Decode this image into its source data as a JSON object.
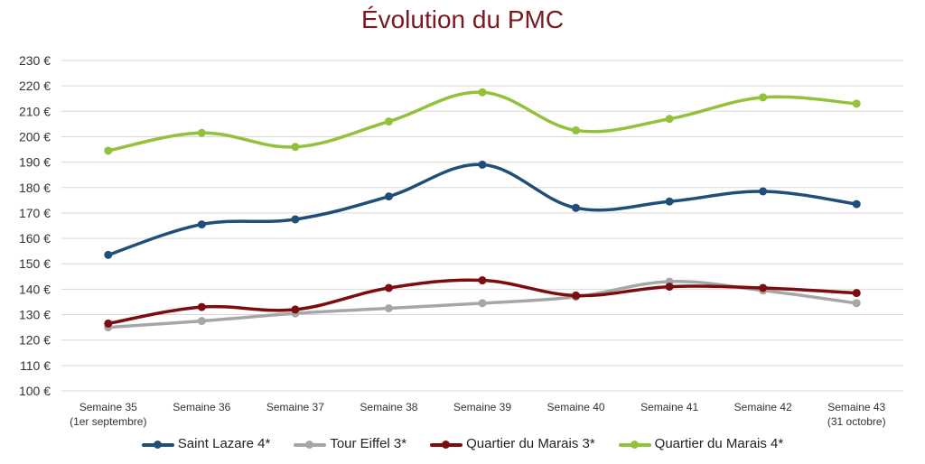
{
  "chart_data": {
    "type": "line",
    "title": "Évolution du PMC",
    "categories": [
      "Semaine 35",
      "Semaine 36",
      "Semaine 37",
      "Semaine 38",
      "Semaine 39",
      "Semaine 40",
      "Semaine 41",
      "Semaine 42",
      "Semaine 43"
    ],
    "category_sublabels": [
      "(1er septembre)",
      "",
      "",
      "",
      "",
      "",
      "",
      "",
      "(31 octobre)"
    ],
    "ylim": [
      100,
      230
    ],
    "yticks": [
      100,
      110,
      120,
      130,
      140,
      150,
      160,
      170,
      180,
      190,
      200,
      210,
      220,
      230
    ],
    "ytick_suffix": " €",
    "grid": true,
    "legend_position": "bottom",
    "series": [
      {
        "name": "Saint Lazare 4*",
        "color": "#1f4e79",
        "values": [
          153.5,
          165.5,
          167.5,
          176.5,
          189,
          172,
          174.5,
          178.5,
          173.5
        ]
      },
      {
        "name": "Tour Eiffel 3*",
        "color": "#a6a6a6",
        "values": [
          125,
          127.5,
          130.5,
          132.5,
          134.5,
          137,
          143,
          139.5,
          134.5
        ]
      },
      {
        "name": "Quartier du Marais 3*",
        "color": "#7b0c0f",
        "values": [
          126.5,
          133,
          132,
          140.5,
          143.5,
          137.5,
          141,
          140.5,
          138.5
        ]
      },
      {
        "name": "Quartier du Marais 4*",
        "color": "#92c13a",
        "values": [
          194.5,
          201.5,
          196,
          206,
          217.5,
          202.5,
          207,
          215.5,
          213
        ]
      }
    ]
  }
}
